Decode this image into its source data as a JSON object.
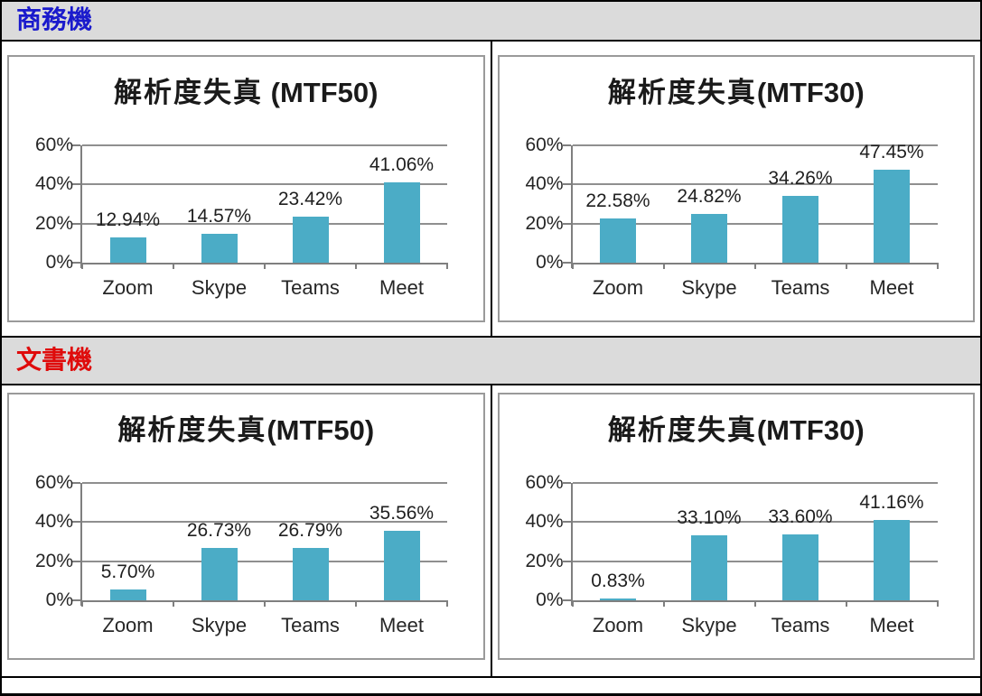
{
  "sections": [
    {
      "label": "商務機",
      "color": "#1a1acc"
    },
    {
      "label": "文書機",
      "color": "#df0b0b"
    }
  ],
  "colors": {
    "bar": "#4bacc6",
    "gridline": "#8f8f8f",
    "axis": "#7f7f7f",
    "panel_border": "#9a9a9a",
    "header_bg": "#dbdbdb",
    "table_border": "#000000"
  },
  "chart_data": [
    {
      "type": "bar",
      "section": "商務機",
      "title_cjk": "解析度失真",
      "title_latin": " (MTF50)",
      "categories": [
        "Zoom",
        "Skype",
        "Teams",
        "Meet"
      ],
      "values": [
        12.94,
        14.57,
        23.42,
        41.06
      ],
      "value_labels": [
        "12.94%",
        "14.57%",
        "23.42%",
        "41.06%"
      ],
      "y_ticks": [
        "60%",
        "40%",
        "20%",
        "0%"
      ],
      "ylim": [
        0,
        60
      ],
      "grid": true,
      "legend": "none"
    },
    {
      "type": "bar",
      "section": "商務機",
      "title_cjk": "解析度失真",
      "title_latin": "(MTF30)",
      "categories": [
        "Zoom",
        "Skype",
        "Teams",
        "Meet"
      ],
      "values": [
        22.58,
        24.82,
        34.26,
        47.45
      ],
      "value_labels": [
        "22.58%",
        "24.82%",
        "34.26%",
        "47.45%"
      ],
      "y_ticks": [
        "60%",
        "40%",
        "20%",
        "0%"
      ],
      "ylim": [
        0,
        60
      ],
      "grid": true,
      "legend": "none"
    },
    {
      "type": "bar",
      "section": "文書機",
      "title_cjk": "解析度失真",
      "title_latin": "(MTF50)",
      "categories": [
        "Zoom",
        "Skype",
        "Teams",
        "Meet"
      ],
      "values": [
        5.7,
        26.73,
        26.79,
        35.56
      ],
      "value_labels": [
        "5.70%",
        "26.73%",
        "26.79%",
        "35.56%"
      ],
      "y_ticks": [
        "60%",
        "40%",
        "20%",
        "0%"
      ],
      "ylim": [
        0,
        60
      ],
      "grid": true,
      "legend": "none"
    },
    {
      "type": "bar",
      "section": "文書機",
      "title_cjk": "解析度失真",
      "title_latin": "(MTF30)",
      "categories": [
        "Zoom",
        "Skype",
        "Teams",
        "Meet"
      ],
      "values": [
        0.83,
        33.1,
        33.6,
        41.16
      ],
      "value_labels": [
        "0.83%",
        "33.10%",
        "33.60%",
        "41.16%"
      ],
      "y_ticks": [
        "60%",
        "40%",
        "20%",
        "0%"
      ],
      "ylim": [
        0,
        60
      ],
      "grid": true,
      "legend": "none"
    }
  ]
}
